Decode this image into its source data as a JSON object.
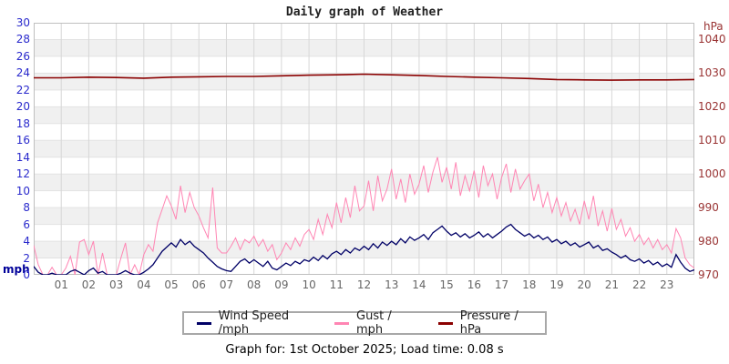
{
  "title": "Daily graph of Weather",
  "caption": "Graph for: 1st October 2025; Load time: 0.08 s",
  "axes": {
    "left": {
      "unit": "mph",
      "color": "#2929cc",
      "ticks": [
        30,
        28,
        26,
        24,
        22,
        20,
        18,
        16,
        14,
        12,
        10,
        8,
        6,
        4,
        2,
        0
      ]
    },
    "right": {
      "unit": "hPa",
      "color": "#993333",
      "ticks": [
        1040,
        1030,
        1020,
        1010,
        1000,
        990,
        980,
        970
      ]
    },
    "x": {
      "labels": [
        "01",
        "02",
        "03",
        "04",
        "05",
        "06",
        "07",
        "08",
        "09",
        "10",
        "11",
        "12",
        "13",
        "14",
        "15",
        "16",
        "17",
        "18",
        "19",
        "20",
        "21",
        "22",
        "23"
      ]
    }
  },
  "legend": [
    {
      "label": "Wind Speed /mph",
      "color": "#000066"
    },
    {
      "label": "Gust / mph",
      "color": "#ff85b3"
    },
    {
      "label": "Pressure / hPa",
      "color": "#8b0000"
    }
  ],
  "colors": {
    "band": "#f0f0f0",
    "h_grid": "#e2e2e2",
    "v_grid": "#d7d7d7",
    "border": "#bfbfbf"
  },
  "chart_data": {
    "type": "line",
    "title": "Daily graph of Weather",
    "x_range_hours": [
      0,
      24
    ],
    "left_axis": {
      "label": "mph",
      "range": [
        0,
        30
      ],
      "tick_step": 2
    },
    "right_axis": {
      "label": "hPa",
      "ticks": [
        970,
        980,
        990,
        1000,
        1010,
        1020,
        1030,
        1040
      ],
      "px_per_hpa_of_left_scale": "970 aligns with 0 mph, 10 hPa per 2.7 mph"
    },
    "grid": true,
    "legend_position": "bottom",
    "series": [
      {
        "name": "Wind Speed /mph",
        "axis": "left",
        "color": "#000066",
        "step_minutes": 10,
        "values": [
          1.0,
          0.3,
          0.0,
          0.0,
          0.2,
          0.0,
          0.0,
          0.0,
          0.4,
          0.6,
          0.3,
          0.0,
          0.5,
          0.8,
          0.2,
          0.4,
          0.0,
          0.0,
          0.0,
          0.2,
          0.5,
          0.2,
          0.0,
          0.0,
          0.3,
          0.7,
          1.2,
          2.0,
          2.8,
          3.3,
          3.8,
          3.3,
          4.2,
          3.6,
          4.0,
          3.4,
          3.0,
          2.6,
          2.0,
          1.5,
          1.0,
          0.7,
          0.5,
          0.4,
          1.0,
          1.6,
          1.9,
          1.4,
          1.8,
          1.4,
          1.0,
          1.6,
          0.8,
          0.6,
          1.0,
          1.4,
          1.1,
          1.6,
          1.3,
          1.8,
          1.6,
          2.1,
          1.7,
          2.3,
          1.9,
          2.5,
          2.8,
          2.4,
          3.0,
          2.6,
          3.2,
          2.9,
          3.4,
          3.0,
          3.7,
          3.2,
          3.9,
          3.5,
          4.0,
          3.6,
          4.3,
          3.8,
          4.5,
          4.1,
          4.4,
          4.8,
          4.2,
          5.0,
          5.4,
          5.8,
          5.2,
          4.7,
          5.0,
          4.5,
          4.9,
          4.4,
          4.7,
          5.1,
          4.5,
          4.9,
          4.4,
          4.8,
          5.2,
          5.7,
          6.0,
          5.4,
          5.0,
          4.6,
          4.9,
          4.4,
          4.7,
          4.2,
          4.5,
          3.9,
          4.2,
          3.7,
          4.0,
          3.5,
          3.8,
          3.3,
          3.6,
          3.9,
          3.2,
          3.5,
          2.9,
          3.1,
          2.7,
          2.4,
          2.0,
          2.3,
          1.8,
          1.6,
          1.9,
          1.4,
          1.7,
          1.2,
          1.5,
          1.0,
          1.3,
          0.9,
          2.4,
          1.5,
          0.8,
          0.4,
          0.6
        ]
      },
      {
        "name": "Gust / mph",
        "axis": "left",
        "color": "#ff85b3",
        "step_minutes": 10,
        "values": [
          3.5,
          1.2,
          0.0,
          0.0,
          0.9,
          0.0,
          0.0,
          0.8,
          2.2,
          0.0,
          3.9,
          4.2,
          2.4,
          4.0,
          0.0,
          2.6,
          0.0,
          0.0,
          0.0,
          2.0,
          3.8,
          0.0,
          1.2,
          0.0,
          2.4,
          3.6,
          2.8,
          6.2,
          7.8,
          9.4,
          8.2,
          6.6,
          10.6,
          7.4,
          9.8,
          8.0,
          7.0,
          5.6,
          4.4,
          10.4,
          3.2,
          2.6,
          2.6,
          3.4,
          4.4,
          3.0,
          4.2,
          3.8,
          4.6,
          3.4,
          4.2,
          2.8,
          3.6,
          1.8,
          2.6,
          3.8,
          3.0,
          4.4,
          3.4,
          4.8,
          5.4,
          4.2,
          6.6,
          4.8,
          7.2,
          5.6,
          8.6,
          6.2,
          9.2,
          6.8,
          10.6,
          7.6,
          8.2,
          11.2,
          7.6,
          11.8,
          8.8,
          10.2,
          12.6,
          9.0,
          11.4,
          8.6,
          12.0,
          9.6,
          10.8,
          13.0,
          9.8,
          12.2,
          14.0,
          11.0,
          12.8,
          10.2,
          13.4,
          9.4,
          11.8,
          10.0,
          12.4,
          9.2,
          13.0,
          10.6,
          12.0,
          9.0,
          11.6,
          13.2,
          9.8,
          12.6,
          10.2,
          11.2,
          12.0,
          8.8,
          10.8,
          8.0,
          9.8,
          7.4,
          9.2,
          7.0,
          8.6,
          6.4,
          7.8,
          6.0,
          8.8,
          6.6,
          9.4,
          5.8,
          7.6,
          5.2,
          7.9,
          5.4,
          6.6,
          4.6,
          5.6,
          4.0,
          4.8,
          3.6,
          4.4,
          3.2,
          4.2,
          3.0,
          3.6,
          2.6,
          5.5,
          4.4,
          2.0,
          1.2,
          0.8
        ]
      },
      {
        "name": "Pressure / hPa",
        "axis": "right",
        "color": "#8b0000",
        "step_minutes": 60,
        "values": [
          1028.4,
          1028.4,
          1028.6,
          1028.5,
          1028.3,
          1028.6,
          1028.7,
          1028.8,
          1028.8,
          1029.0,
          1029.2,
          1029.3,
          1029.5,
          1029.3,
          1029.1,
          1028.8,
          1028.6,
          1028.4,
          1028.2,
          1027.9,
          1027.8,
          1027.7,
          1027.8,
          1027.8,
          1027.9
        ]
      }
    ]
  }
}
